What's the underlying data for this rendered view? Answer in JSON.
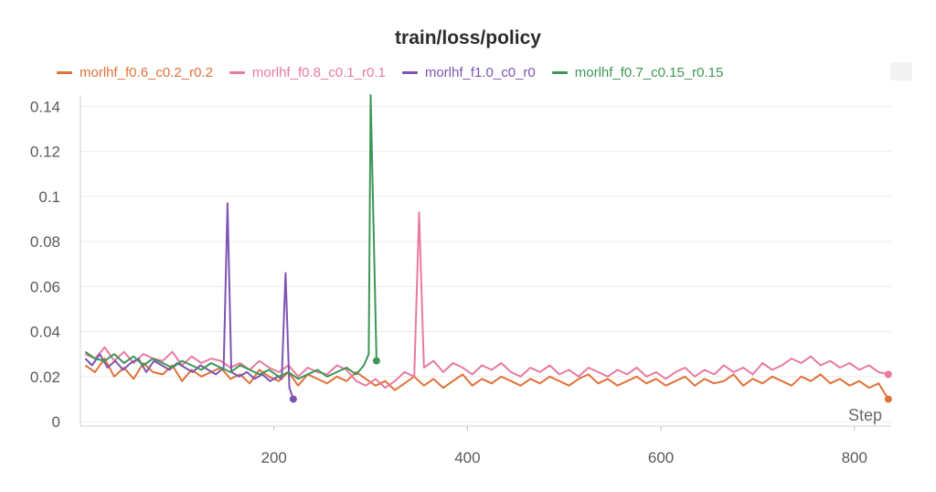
{
  "chart_data": {
    "type": "line",
    "title": "train/loss/policy",
    "xlabel": "Step",
    "ylabel": "",
    "xlim": [
      0,
      838
    ],
    "ylim": [
      -0.002,
      0.145
    ],
    "x_ticks": [
      200,
      400,
      600,
      800
    ],
    "y_ticks": [
      0,
      0.02,
      0.04,
      0.06,
      0.08,
      0.1,
      0.12,
      0.14
    ],
    "y_tick_labels": [
      "0",
      "0.02",
      "0.04",
      "0.06",
      "0.08",
      "0.1",
      "0.12",
      "0.14"
    ],
    "grid": true,
    "legend_position": "top",
    "series": [
      {
        "name": "morlhf_f0.6_c0.2_r0.2",
        "color": "#e07138",
        "x": [
          5,
          15,
          25,
          35,
          45,
          55,
          65,
          75,
          85,
          95,
          105,
          115,
          125,
          135,
          145,
          155,
          165,
          175,
          185,
          195,
          205,
          215,
          225,
          235,
          245,
          255,
          265,
          275,
          285,
          295,
          305,
          315,
          325,
          335,
          345,
          355,
          365,
          375,
          385,
          395,
          405,
          415,
          425,
          435,
          445,
          455,
          465,
          475,
          485,
          495,
          505,
          515,
          525,
          535,
          545,
          555,
          565,
          575,
          585,
          595,
          605,
          615,
          625,
          635,
          645,
          655,
          665,
          675,
          685,
          695,
          705,
          715,
          725,
          735,
          745,
          755,
          765,
          775,
          785,
          795,
          805,
          815,
          825,
          835
        ],
        "values": [
          0.025,
          0.022,
          0.028,
          0.02,
          0.024,
          0.019,
          0.026,
          0.022,
          0.021,
          0.025,
          0.018,
          0.023,
          0.02,
          0.022,
          0.024,
          0.019,
          0.021,
          0.017,
          0.023,
          0.02,
          0.018,
          0.022,
          0.016,
          0.021,
          0.019,
          0.017,
          0.02,
          0.018,
          0.022,
          0.019,
          0.016,
          0.018,
          0.014,
          0.017,
          0.02,
          0.016,
          0.019,
          0.015,
          0.018,
          0.021,
          0.016,
          0.019,
          0.017,
          0.02,
          0.018,
          0.016,
          0.019,
          0.017,
          0.02,
          0.018,
          0.016,
          0.019,
          0.021,
          0.017,
          0.019,
          0.016,
          0.018,
          0.02,
          0.017,
          0.019,
          0.016,
          0.018,
          0.02,
          0.016,
          0.019,
          0.017,
          0.018,
          0.021,
          0.016,
          0.019,
          0.017,
          0.02,
          0.018,
          0.016,
          0.02,
          0.018,
          0.021,
          0.017,
          0.019,
          0.016,
          0.018,
          0.015,
          0.017,
          0.01
        ]
      },
      {
        "name": "morlhf_f0.8_c0.1_r0.1",
        "color": "#e87a9f",
        "x": [
          5,
          15,
          25,
          35,
          45,
          55,
          65,
          75,
          85,
          95,
          105,
          115,
          125,
          135,
          145,
          155,
          165,
          175,
          185,
          195,
          205,
          215,
          225,
          235,
          245,
          255,
          265,
          275,
          285,
          295,
          305,
          315,
          325,
          335,
          345,
          350,
          355,
          365,
          375,
          385,
          395,
          405,
          415,
          425,
          435,
          445,
          455,
          465,
          475,
          485,
          495,
          505,
          515,
          525,
          535,
          545,
          555,
          565,
          575,
          585,
          595,
          605,
          615,
          625,
          635,
          645,
          655,
          665,
          675,
          685,
          695,
          705,
          715,
          725,
          735,
          745,
          755,
          765,
          775,
          785,
          795,
          805,
          815,
          825,
          835
        ],
        "values": [
          0.03,
          0.028,
          0.033,
          0.027,
          0.031,
          0.026,
          0.03,
          0.028,
          0.027,
          0.031,
          0.025,
          0.029,
          0.026,
          0.028,
          0.027,
          0.024,
          0.026,
          0.023,
          0.027,
          0.024,
          0.022,
          0.025,
          0.02,
          0.024,
          0.022,
          0.021,
          0.025,
          0.023,
          0.018,
          0.016,
          0.019,
          0.015,
          0.018,
          0.022,
          0.02,
          0.093,
          0.024,
          0.027,
          0.022,
          0.026,
          0.024,
          0.021,
          0.025,
          0.023,
          0.026,
          0.022,
          0.02,
          0.024,
          0.022,
          0.025,
          0.021,
          0.023,
          0.02,
          0.024,
          0.022,
          0.02,
          0.023,
          0.021,
          0.024,
          0.02,
          0.022,
          0.019,
          0.022,
          0.024,
          0.02,
          0.023,
          0.021,
          0.025,
          0.022,
          0.024,
          0.021,
          0.026,
          0.023,
          0.025,
          0.028,
          0.026,
          0.029,
          0.025,
          0.027,
          0.024,
          0.026,
          0.023,
          0.025,
          0.022,
          0.021
        ]
      },
      {
        "name": "morlhf_f1.0_c0_r0",
        "color": "#7d54b2",
        "x": [
          5,
          12,
          20,
          28,
          36,
          44,
          52,
          60,
          68,
          76,
          84,
          92,
          100,
          108,
          116,
          124,
          132,
          140,
          148,
          152,
          156,
          164,
          172,
          180,
          188,
          196,
          204,
          208,
          212,
          216,
          220
        ],
        "values": [
          0.028,
          0.025,
          0.03,
          0.024,
          0.027,
          0.023,
          0.026,
          0.028,
          0.022,
          0.027,
          0.025,
          0.023,
          0.026,
          0.024,
          0.022,
          0.025,
          0.023,
          0.021,
          0.024,
          0.097,
          0.022,
          0.02,
          0.022,
          0.019,
          0.021,
          0.018,
          0.02,
          0.019,
          0.066,
          0.015,
          0.01
        ]
      },
      {
        "name": "morlhf_f0.7_c0.15_r0.15",
        "color": "#3d9655",
        "x": [
          5,
          15,
          25,
          35,
          45,
          55,
          65,
          75,
          85,
          95,
          105,
          115,
          125,
          135,
          145,
          155,
          165,
          175,
          185,
          195,
          205,
          215,
          225,
          235,
          245,
          255,
          265,
          275,
          285,
          293,
          298,
          300,
          306
        ],
        "values": [
          0.031,
          0.028,
          0.027,
          0.03,
          0.026,
          0.029,
          0.025,
          0.028,
          0.026,
          0.024,
          0.027,
          0.025,
          0.023,
          0.026,
          0.024,
          0.022,
          0.025,
          0.023,
          0.021,
          0.023,
          0.02,
          0.022,
          0.019,
          0.021,
          0.023,
          0.02,
          0.022,
          0.024,
          0.021,
          0.025,
          0.03,
          0.145,
          0.027
        ]
      }
    ]
  }
}
